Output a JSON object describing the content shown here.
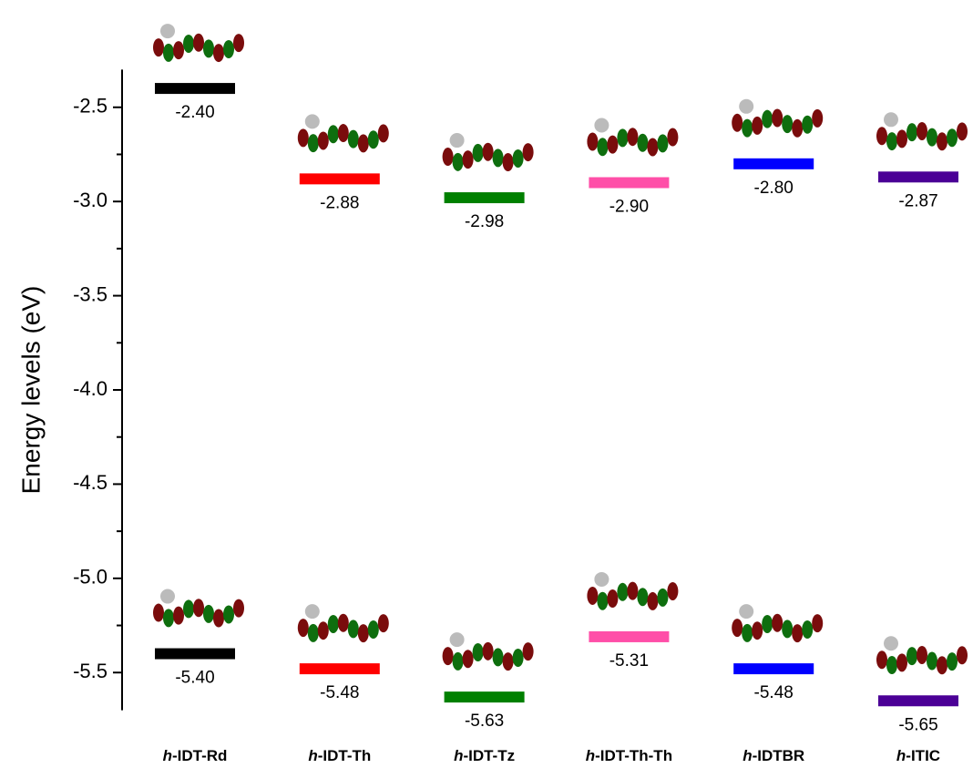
{
  "chart_data": {
    "type": "energy_level",
    "y_label": "Energy levels (eV)",
    "categories": [
      "h-IDT-Rd",
      "h-IDT-Th",
      "h-IDT-Tz",
      "h-IDT-Th-Th",
      "h-IDTBR",
      "h-ITIC"
    ],
    "colors": [
      "#000000",
      "#ff0000",
      "#008000",
      "#ff4fa8",
      "#0000ff",
      "#4b0096"
    ],
    "series": [
      {
        "values": [
          -2.4,
          -2.88,
          -2.98,
          -2.9,
          -2.8,
          -2.87
        ],
        "value_labels": [
          "-2.40",
          "-2.88",
          "-2.98",
          "-2.90",
          "-2.80",
          "-2.87"
        ]
      },
      {
        "values": [
          -5.4,
          -5.48,
          -5.63,
          -5.31,
          -5.48,
          -5.65
        ],
        "value_labels": [
          "-5.40",
          "-5.48",
          "-5.63",
          "-5.31",
          "-5.48",
          "-5.65"
        ]
      }
    ],
    "ylim": [
      -5.7,
      -2.3
    ],
    "yticks": [
      -2.5,
      {
        "value": -3,
        "label": "-3.0"
      },
      -3.5,
      {
        "value": -4,
        "label": "-4.0"
      },
      -4.5,
      {
        "value": -5,
        "label": "-5.0"
      },
      -5.5
    ],
    "yticks_minor": [
      -2.75,
      -3.25,
      -3.75,
      -4.25,
      -4.75,
      -5.25
    ]
  }
}
